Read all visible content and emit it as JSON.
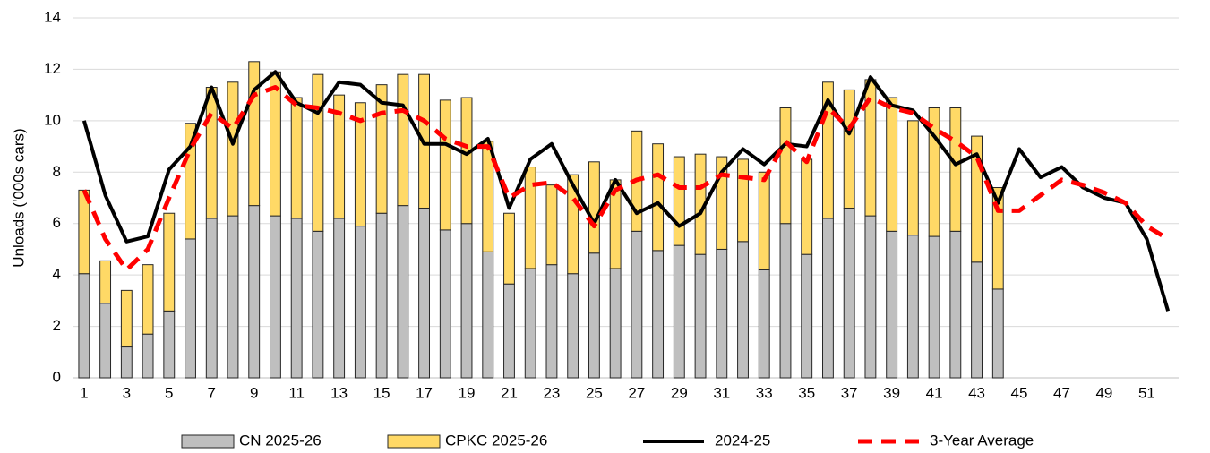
{
  "chart_data": {
    "type": "bar",
    "stacked": true,
    "y_label": "Unloads ('000s cars)",
    "categories": [
      1,
      null,
      3,
      null,
      5,
      null,
      7,
      null,
      9,
      null,
      11,
      null,
      13,
      null,
      15,
      null,
      17,
      null,
      19,
      null,
      21,
      null,
      23,
      null,
      25,
      null,
      27,
      null,
      29,
      null,
      31,
      null,
      33,
      null,
      35,
      null,
      37,
      null,
      39,
      null,
      41,
      null,
      43,
      null,
      45,
      null,
      47,
      null,
      49,
      null,
      51,
      null
    ],
    "ylim": [
      0,
      14
    ],
    "yticks": [
      0,
      2,
      4,
      6,
      8,
      10,
      12,
      14
    ],
    "grid": true,
    "legend": "bottom",
    "series": [
      {
        "name": "CN 2025-26",
        "type": "bar",
        "color": "#bfbfbf",
        "values": [
          4.05,
          2.9,
          1.2,
          1.7,
          2.6,
          5.4,
          6.2,
          6.3,
          6.7,
          6.3,
          6.2,
          5.7,
          6.2,
          5.9,
          6.4,
          6.7,
          6.6,
          5.75,
          6.0,
          4.9,
          3.65,
          4.25,
          4.4,
          4.05,
          4.85,
          4.25,
          5.7,
          4.95,
          5.15,
          4.8,
          5.0,
          5.3,
          4.2,
          6.0,
          4.8,
          6.2,
          6.6,
          6.3,
          5.7,
          5.55,
          5.5,
          5.7,
          4.5,
          3.45,
          null,
          null,
          null,
          null,
          null,
          null,
          null,
          null
        ]
      },
      {
        "name": "CPKC 2025-26",
        "type": "bar",
        "color": "#ffd966",
        "values": [
          3.25,
          1.65,
          2.2,
          2.7,
          3.8,
          4.5,
          5.1,
          5.2,
          5.6,
          5.6,
          4.7,
          6.1,
          4.8,
          4.8,
          5.0,
          5.1,
          5.2,
          5.05,
          4.9,
          4.3,
          2.75,
          3.95,
          3.1,
          3.85,
          3.55,
          3.45,
          3.9,
          4.15,
          3.45,
          3.9,
          3.6,
          3.2,
          3.8,
          4.5,
          3.7,
          5.3,
          4.6,
          5.3,
          5.2,
          4.45,
          5.0,
          4.8,
          4.9,
          3.95,
          null,
          null,
          null,
          null,
          null,
          null,
          null,
          null
        ]
      },
      {
        "name": "2024-25",
        "type": "line",
        "color": "#000000",
        "dashed": false,
        "values": [
          10.0,
          7.1,
          5.3,
          5.5,
          8.1,
          9.0,
          11.3,
          9.1,
          11.2,
          11.9,
          10.7,
          10.3,
          11.5,
          11.4,
          10.7,
          10.6,
          9.1,
          9.1,
          8.7,
          9.3,
          6.6,
          8.5,
          9.1,
          7.5,
          6.0,
          7.7,
          6.4,
          6.8,
          5.9,
          6.4,
          8.0,
          8.9,
          8.3,
          9.1,
          9.0,
          10.8,
          9.5,
          11.7,
          10.6,
          10.4,
          9.4,
          8.3,
          8.7,
          6.8,
          8.9,
          7.8,
          8.2,
          7.4,
          7.0,
          6.8,
          5.4,
          2.6
        ]
      },
      {
        "name": "3-Year Average",
        "type": "line",
        "color": "#ff0000",
        "dashed": true,
        "values": [
          7.3,
          5.4,
          4.2,
          5.0,
          7.0,
          8.9,
          10.3,
          9.7,
          11.0,
          11.3,
          10.6,
          10.5,
          10.3,
          10.0,
          10.3,
          10.4,
          10.0,
          9.3,
          9.0,
          9.0,
          7.0,
          7.5,
          7.6,
          7.0,
          5.9,
          7.3,
          7.7,
          7.9,
          7.4,
          7.4,
          7.9,
          7.8,
          7.7,
          9.2,
          8.4,
          10.5,
          9.7,
          10.9,
          10.5,
          10.3,
          9.7,
          9.2,
          8.6,
          6.5,
          6.5,
          7.1,
          7.7,
          7.5,
          7.2,
          6.8,
          5.9,
          5.4
        ]
      }
    ]
  }
}
